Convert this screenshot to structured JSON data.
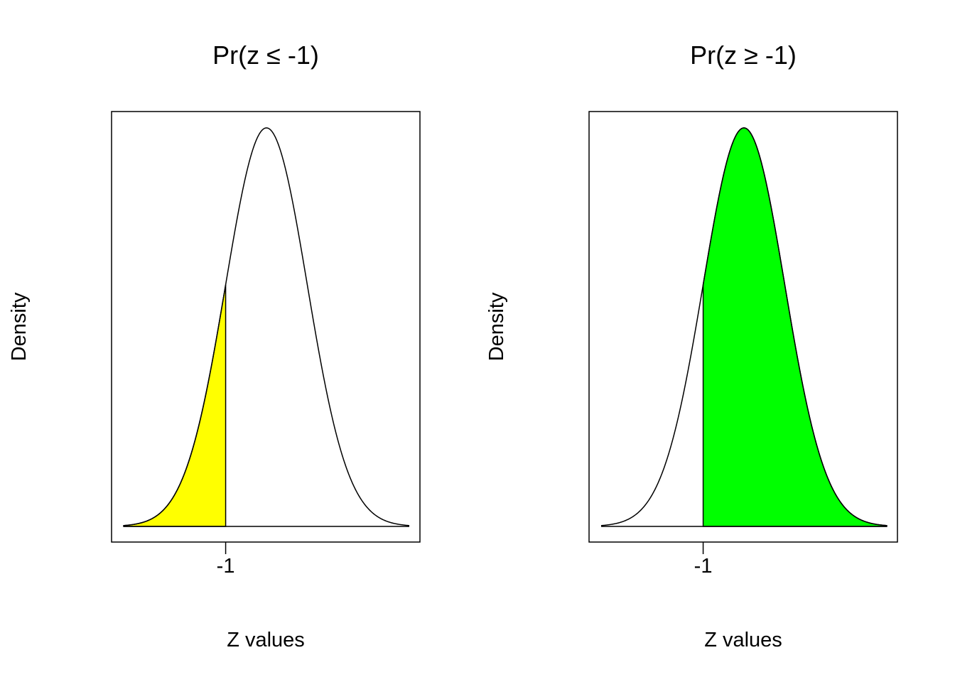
{
  "chart_data": [
    {
      "type": "area",
      "title": "Pr(z ≤ -1)",
      "xlabel": "Z values",
      "ylabel": "Density",
      "distribution": "standard normal",
      "xlim": [
        -3.5,
        3.5
      ],
      "xticks": [
        -1
      ],
      "xtick_labels": [
        "-1"
      ],
      "shaded_region": {
        "from": -3.5,
        "to": -1
      },
      "fill_color": "#ffff00",
      "grid": false
    },
    {
      "type": "area",
      "title": "Pr(z ≥ -1)",
      "xlabel": "Z values",
      "ylabel": "Density",
      "distribution": "standard normal",
      "xlim": [
        -3.5,
        3.5
      ],
      "xticks": [
        -1
      ],
      "xtick_labels": [
        "-1"
      ],
      "shaded_region": {
        "from": -1,
        "to": 3.5
      },
      "fill_color": "#00ff00",
      "grid": false
    }
  ]
}
